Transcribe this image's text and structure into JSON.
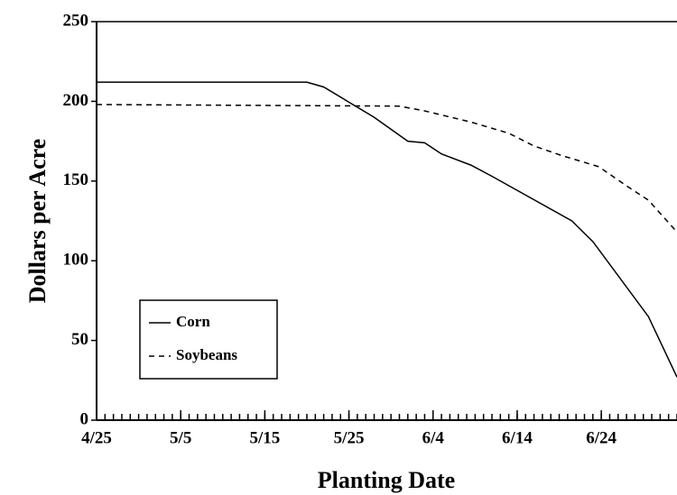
{
  "chart_data": {
    "type": "line",
    "xlabel": "Planting Date",
    "ylabel": "Dollars per Acre",
    "xlim": [
      0,
      69
    ],
    "ylim": [
      0,
      250
    ],
    "xticks": [
      {
        "value": 0,
        "label": "4/25"
      },
      {
        "value": 10,
        "label": "5/5"
      },
      {
        "value": 20,
        "label": "5/15"
      },
      {
        "value": 30,
        "label": "5/25"
      },
      {
        "value": 40,
        "label": "6/4"
      },
      {
        "value": 50,
        "label": "6/14"
      },
      {
        "value": 60,
        "label": "6/24"
      }
    ],
    "yticks": [
      0,
      50,
      100,
      150,
      200,
      250
    ],
    "legend": "lower left",
    "series": [
      {
        "name": "Corn",
        "color": "#000000",
        "dash": "solid",
        "x": [
          0,
          25,
          27,
          33,
          37,
          39,
          41,
          44.5,
          47,
          56.5,
          59,
          65.6,
          69
        ],
        "values": [
          212,
          212,
          209,
          190,
          175,
          174,
          167,
          160,
          153,
          125,
          112,
          65,
          27
        ]
      },
      {
        "name": "Soybeans",
        "color": "#000000",
        "dash": "dashed",
        "x": [
          0,
          36,
          39,
          44.5,
          49,
          52,
          55.3,
          59.7,
          63,
          65.6,
          69
        ],
        "values": [
          198,
          197,
          194,
          187,
          180,
          172,
          166,
          159,
          147,
          138,
          118
        ]
      }
    ]
  }
}
